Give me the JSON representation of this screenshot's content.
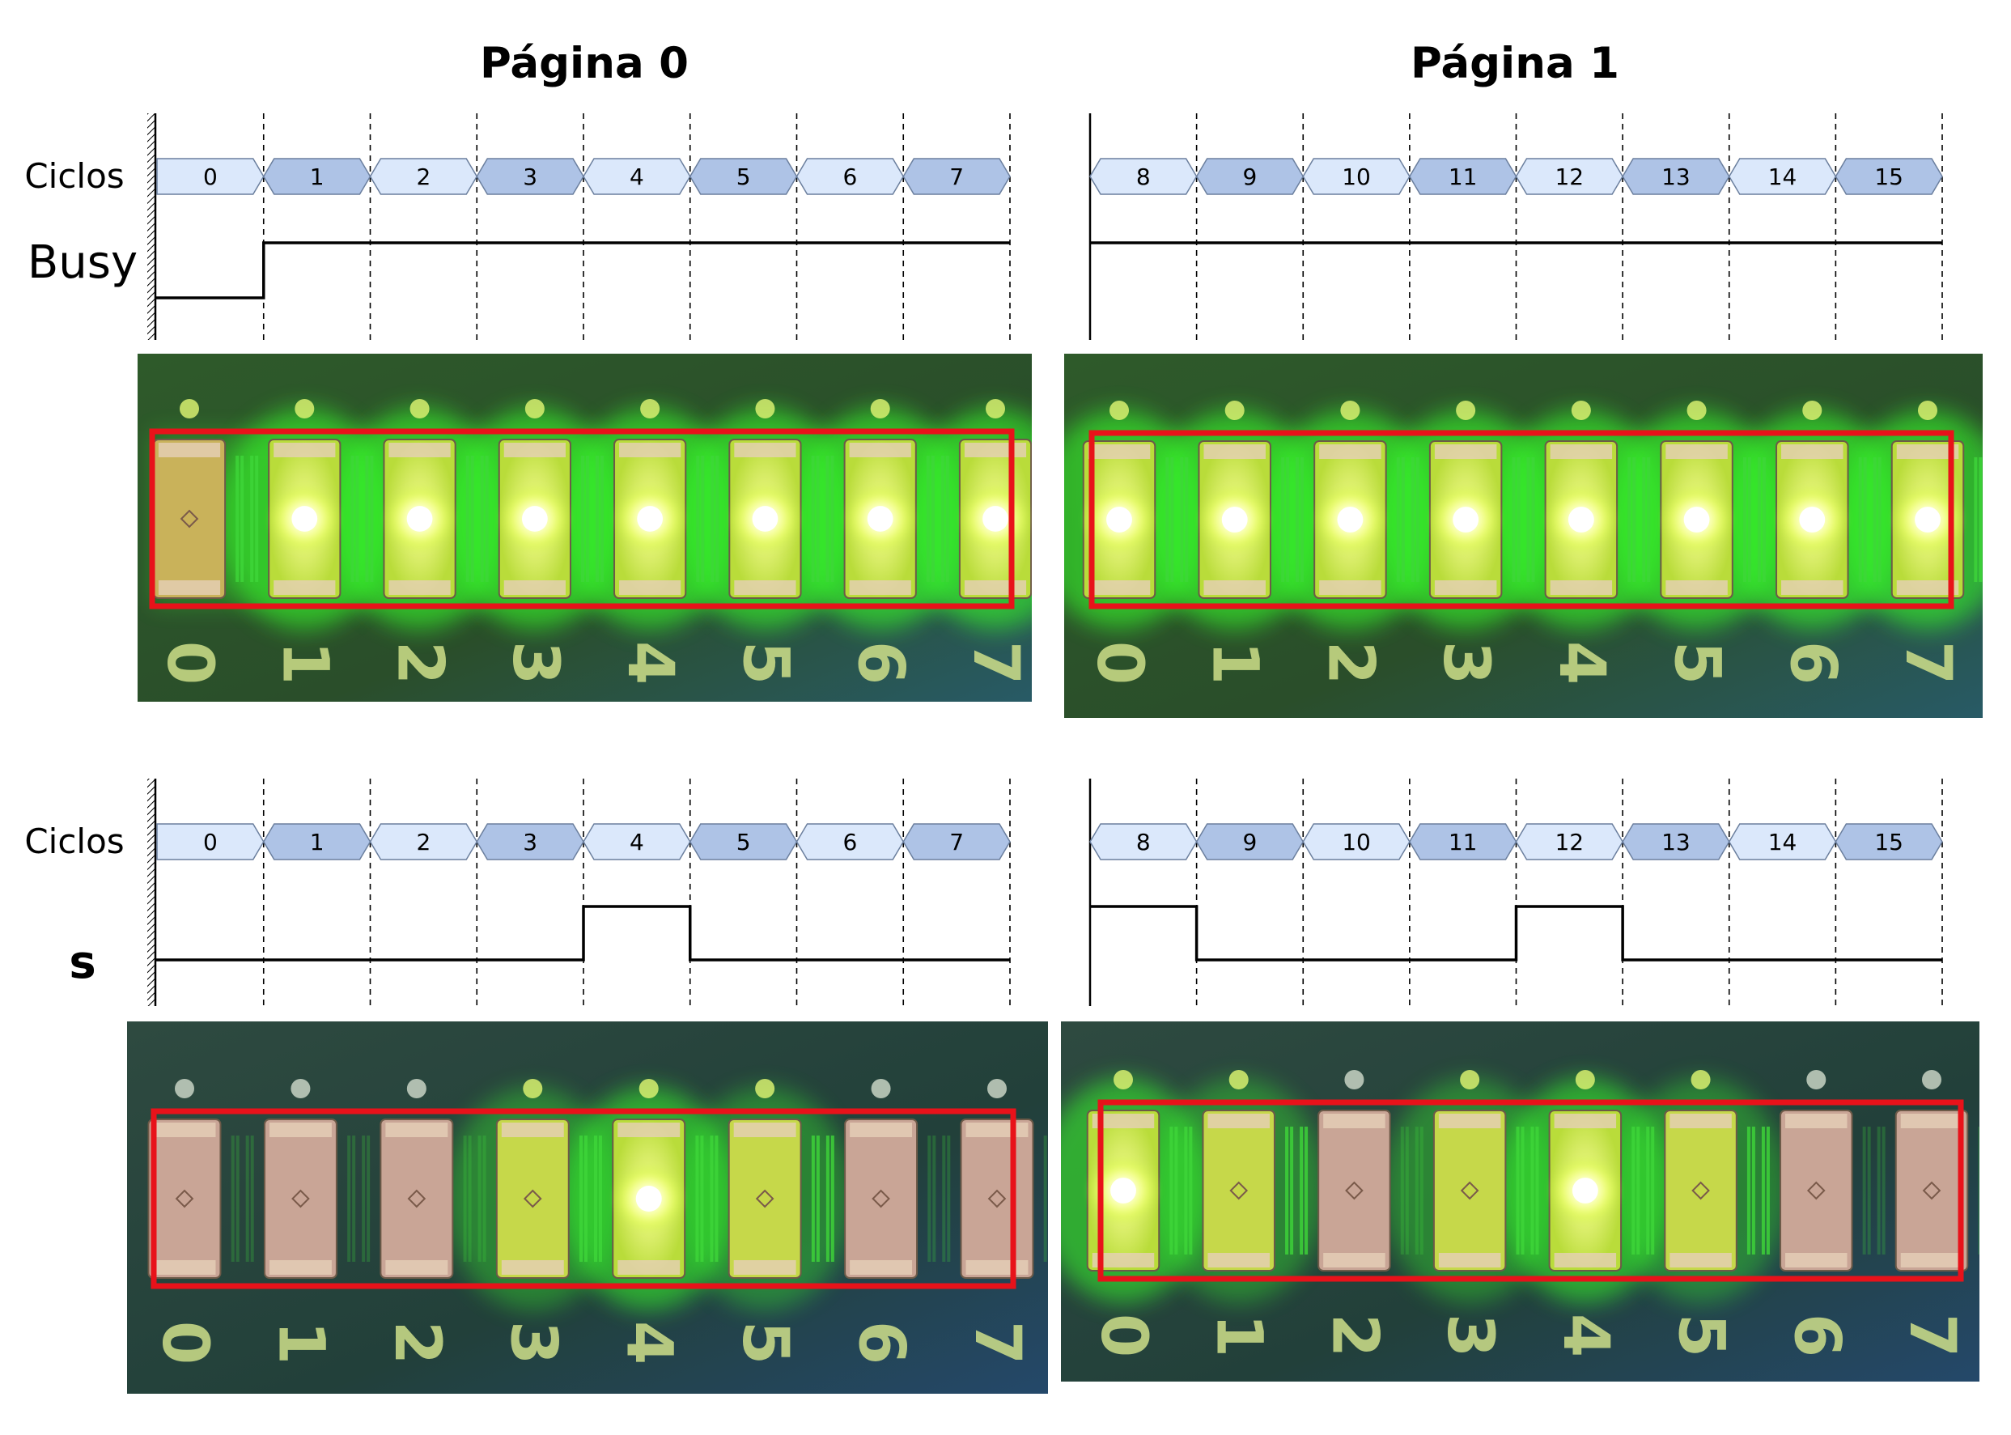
{
  "titles": {
    "page0": "Página 0",
    "page1": "Página 1"
  },
  "labels": {
    "ciclos": "Ciclos",
    "busy": "Busy",
    "s": "s"
  },
  "pages": [
    {
      "cycles": [
        "0",
        "1",
        "2",
        "3",
        "4",
        "5",
        "6",
        "7"
      ],
      "busy": [
        0,
        1,
        1,
        1,
        1,
        1,
        1,
        1
      ],
      "s": [
        0,
        0,
        0,
        0,
        1,
        0,
        0,
        0
      ],
      "photo_top_leds": [
        0.25,
        1,
        1,
        1,
        1,
        1,
        1,
        1
      ],
      "photo_bottom_leds": [
        0,
        0,
        0,
        0.55,
        1,
        0.55,
        0,
        0
      ]
    },
    {
      "cycles": [
        "8",
        "9",
        "10",
        "11",
        "12",
        "13",
        "14",
        "15"
      ],
      "busy": [
        1,
        1,
        1,
        1,
        1,
        1,
        1,
        1
      ],
      "s": [
        1,
        0,
        0,
        0,
        1,
        0,
        0,
        0
      ],
      "photo_top_leds": [
        1,
        1,
        1,
        1,
        1,
        1,
        1,
        1
      ],
      "photo_bottom_leds": [
        1,
        0.55,
        0,
        0.55,
        1,
        0.55,
        0,
        0
      ]
    }
  ],
  "pcb_digits": [
    "0",
    "1",
    "2",
    "3",
    "4",
    "5",
    "6",
    "7"
  ],
  "colors": {
    "cycle_light": "#dbe8fb",
    "cycle_dark": "#aec3e6",
    "cycle_stroke": "#6b7f9e",
    "highlight_box": "#e8121a",
    "pcb_dark": "#263a30",
    "pcb_green": "#2c6a24",
    "led_lit": "#f4ff6a",
    "led_off": "#c9a596",
    "glow": "#39ff2a"
  }
}
